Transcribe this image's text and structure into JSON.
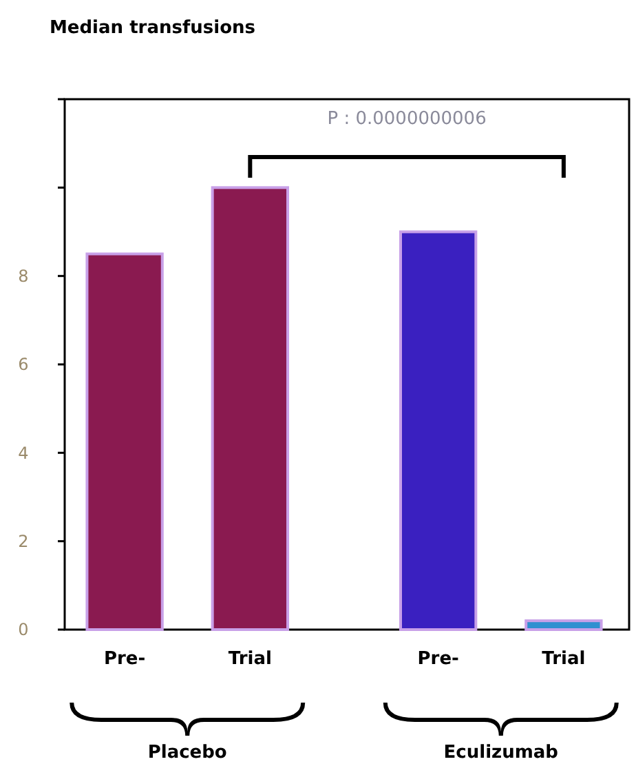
{
  "chart_data": {
    "type": "bar",
    "title": "Median transfusions",
    "categories": [
      "Pre-",
      "Trial",
      "Pre-",
      "Trial"
    ],
    "values": [
      8.5,
      10.0,
      9.0,
      0.2
    ],
    "colors": [
      "#8a1a50",
      "#8a1a50",
      "#3a20c0",
      "#3090d0"
    ],
    "ylim": [
      0,
      12
    ],
    "yticks": [
      0,
      2,
      4,
      6,
      8,
      {
        "value": 10,
        "label": null
      },
      {
        "value": 12,
        "label": null
      }
    ],
    "annotations": [
      "P : 0.0000000006",
      "Placebo",
      "Eculizumab"
    ],
    "grid": false
  }
}
